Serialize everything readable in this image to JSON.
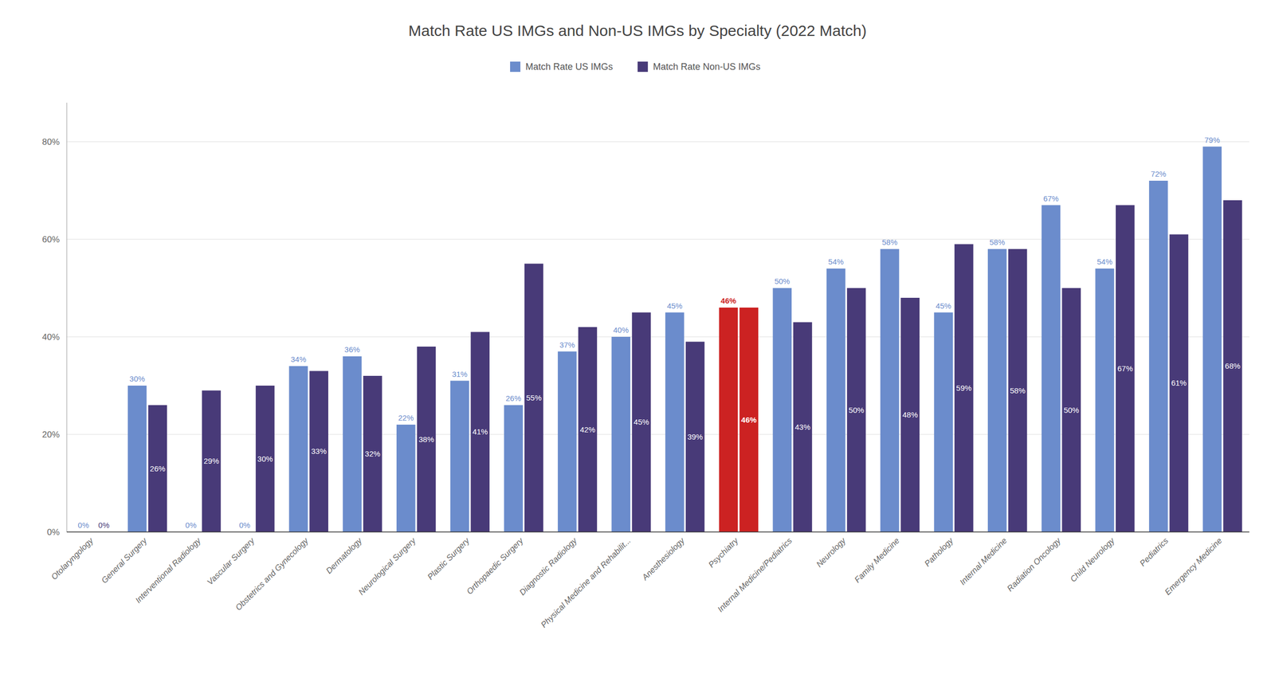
{
  "chart_data": {
    "type": "bar",
    "title": "Match Rate US IMGs and Non-US IMGs by Specialty (2022 Match)",
    "categories": [
      "Otolaryngology",
      "General Surgery",
      "Interventional Radiology",
      "Vascular Surgery",
      "Obstetrics and Gynecology",
      "Dermatology",
      "Neurological Surgery",
      "Plastic Surgery",
      "Orthopaedic Surgery",
      "Diagnostic Radiology",
      "Physical Medicine and Rehabilit...",
      "Anesthesiology",
      "Psychiatry",
      "Internal Medicine/Pediatrics",
      "Neurology",
      "Family Medicine",
      "Pathology",
      "Internal Medicine",
      "Radiation Oncology",
      "Child Neurology",
      "Pediatrics",
      "Emergency Medicine"
    ],
    "series": [
      {
        "name": "Match Rate US IMGs",
        "color": "#6b8ccc",
        "colors": [
          "#6b8ccc",
          "#6b8ccc",
          "#6b8ccc",
          "#6b8ccc",
          "#6b8ccc",
          "#6b8ccc",
          "#6b8ccc",
          "#6b8ccc",
          "#6b8ccc",
          "#6b8ccc",
          "#6b8ccc",
          "#6b8ccc",
          "#cc2222",
          "#6b8ccc",
          "#6b8ccc",
          "#6b8ccc",
          "#6b8ccc",
          "#6b8ccc",
          "#6b8ccc",
          "#6b8ccc",
          "#6b8ccc",
          "#6b8ccc"
        ],
        "values": [
          0,
          30,
          0,
          0,
          34,
          36,
          22,
          31,
          26,
          37,
          40,
          45,
          46,
          50,
          54,
          58,
          45,
          58,
          67,
          54,
          72,
          79
        ],
        "value_labels": [
          "0%",
          "30%",
          "0%",
          "0%",
          "34%",
          "36%",
          "22%",
          "31%",
          "26%",
          "37%",
          "40%",
          "45%",
          "46%",
          "50%",
          "54%",
          "58%",
          "45%",
          "58%",
          "67%",
          "54%",
          "72%",
          "79%"
        ]
      },
      {
        "name": "Match Rate Non-US IMGs",
        "color": "#483a78",
        "colors": [
          "#483a78",
          "#483a78",
          "#483a78",
          "#483a78",
          "#483a78",
          "#483a78",
          "#483a78",
          "#483a78",
          "#483a78",
          "#483a78",
          "#483a78",
          "#483a78",
          "#cc2222",
          "#483a78",
          "#483a78",
          "#483a78",
          "#483a78",
          "#483a78",
          "#483a78",
          "#483a78",
          "#483a78",
          "#483a78"
        ],
        "values": [
          0,
          26,
          29,
          30,
          33,
          32,
          38,
          41,
          55,
          42,
          45,
          39,
          46,
          43,
          50,
          48,
          59,
          58,
          50,
          67,
          61,
          68
        ],
        "value_labels": [
          "0%",
          "26%",
          "29%",
          "30%",
          "33%",
          "32%",
          "38%",
          "41%",
          "55%",
          "42%",
          "45%",
          "39%",
          "46%",
          "43%",
          "50%",
          "48%",
          "59%",
          "58%",
          "50%",
          "67%",
          "61%",
          "68%"
        ]
      }
    ],
    "ylim": [
      0,
      88
    ],
    "yticks": [
      {
        "value": 0,
        "label": "0%"
      },
      {
        "value": 20,
        "label": "20%"
      },
      {
        "value": 40,
        "label": "40%"
      },
      {
        "value": 60,
        "label": "60%"
      },
      {
        "value": 80,
        "label": "80%"
      }
    ],
    "grid": true,
    "legend": "top",
    "data_labels": true
  }
}
